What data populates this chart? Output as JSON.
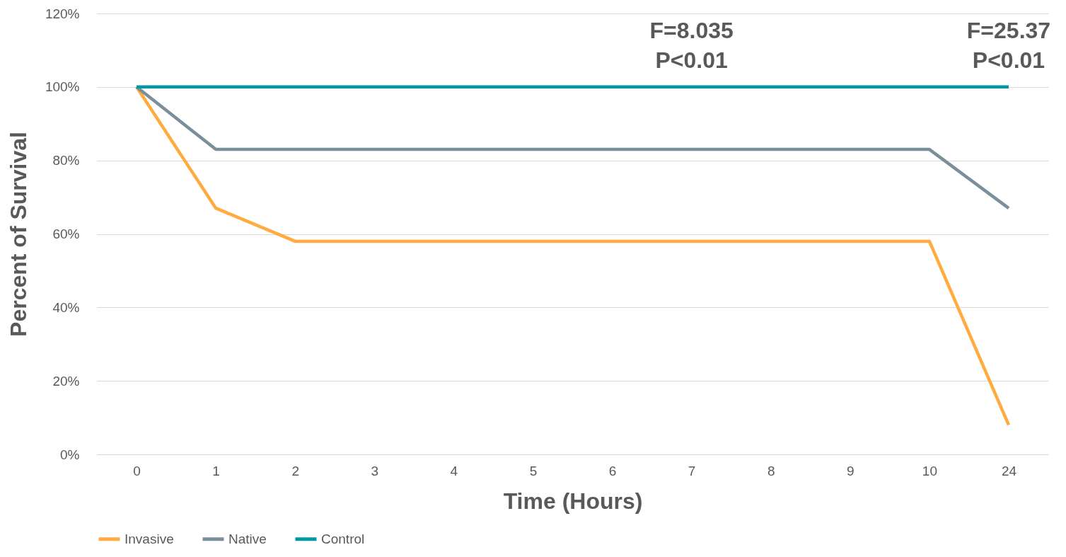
{
  "chart_data": {
    "type": "line",
    "xlabel": "Time (Hours)",
    "ylabel": "Percent of Survival",
    "categories": [
      "0",
      "1",
      "2",
      "3",
      "4",
      "5",
      "6",
      "7",
      "8",
      "9",
      "10",
      "24"
    ],
    "series": [
      {
        "name": "Invasive",
        "color": "#ffab40",
        "values": [
          100,
          67,
          58,
          58,
          58,
          58,
          58,
          58,
          58,
          58,
          58,
          8
        ]
      },
      {
        "name": "Native",
        "color": "#7b8f9b",
        "values": [
          100,
          83,
          83,
          83,
          83,
          83,
          83,
          83,
          83,
          83,
          83,
          67
        ]
      },
      {
        "name": "Control",
        "color": "#0097a7",
        "values": [
          100,
          100,
          100,
          100,
          100,
          100,
          100,
          100,
          100,
          100,
          100,
          100
        ]
      }
    ],
    "ylim": [
      0,
      120
    ],
    "yticks": [
      {
        "value": 0,
        "label": "0%"
      },
      {
        "value": 20,
        "label": "20%"
      },
      {
        "value": 40,
        "label": "40%"
      },
      {
        "value": 60,
        "label": "60%"
      },
      {
        "value": 80,
        "label": "80%"
      },
      {
        "value": 100,
        "label": "100%"
      },
      {
        "value": 120,
        "label": "120%"
      }
    ],
    "annotations": [
      "F=8.035\nP<0.01",
      "F=25.37\nP<0.01"
    ],
    "grid": "y",
    "legend": "bottom"
  }
}
